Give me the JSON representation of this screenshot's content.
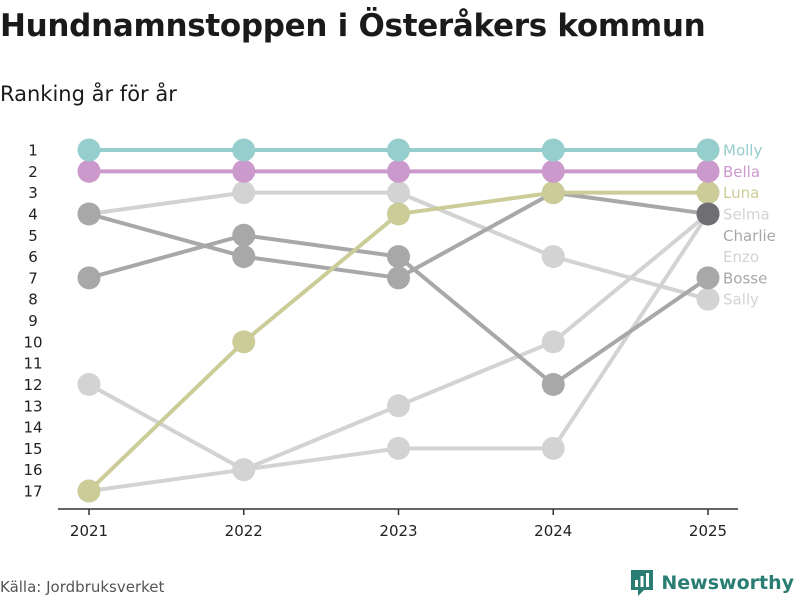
{
  "header": {
    "title": "Hundnamnstoppen i Österåkers kommun",
    "subtitle": "Ranking år för år"
  },
  "footer": {
    "source": "Källa: Jordbruksverket",
    "brand": "Newsworthy"
  },
  "colors": {
    "molly": "#96cdcd",
    "bella": "#cc99cc",
    "luna": "#cccc99",
    "light_gray": "#d3d3d3",
    "mid_gray": "#a8a8a8",
    "dark_gray": "#6e6e73",
    "axis": "#333333",
    "brand": "#2a7d73"
  },
  "chart_data": {
    "type": "line",
    "title": "Hundnamnstoppen i Österåkers kommun",
    "subtitle": "Ranking år för år",
    "xlabel": "",
    "ylabel": "",
    "x": [
      2021,
      2022,
      2023,
      2024,
      2025
    ],
    "x_tick_labels": [
      "2021",
      "2022",
      "2023",
      "2024",
      "2025"
    ],
    "y_tick_labels": [
      "1",
      "2",
      "3",
      "4",
      "5",
      "6",
      "7",
      "8",
      "9",
      "10",
      "11",
      "12",
      "13",
      "14",
      "15",
      "16",
      "17"
    ],
    "ylim": [
      1,
      17
    ],
    "y_inverted": true,
    "grid": false,
    "series": [
      {
        "name": "Sally",
        "values": [
          4,
          3,
          3,
          6,
          8
        ],
        "color_key": "light_gray"
      },
      {
        "name": "Enzo",
        "values": [
          12,
          16,
          13,
          10,
          4
        ],
        "color_key": "light_gray"
      },
      {
        "name": "Charlie",
        "values": [
          17,
          16,
          15,
          15,
          4
        ],
        "color_key": "light_gray"
      },
      {
        "name": "Selma",
        "values": [
          4,
          6,
          7,
          3,
          4
        ],
        "color_key": "mid_gray"
      },
      {
        "name": "Bosse",
        "values": [
          7,
          5,
          6,
          12,
          7
        ],
        "color_key": "mid_gray"
      },
      {
        "name": "Luna",
        "values": [
          17,
          10,
          4,
          3,
          3
        ],
        "color_key": "luna"
      },
      {
        "name": "Bella",
        "values": [
          2,
          2,
          2,
          2,
          2
        ],
        "color_key": "bella"
      },
      {
        "name": "Molly",
        "values": [
          1,
          1,
          1,
          1,
          1
        ],
        "color_key": "molly"
      }
    ],
    "end_labels": [
      {
        "name": "Molly",
        "rank": 1,
        "color_key": "molly"
      },
      {
        "name": "Bella",
        "rank": 2,
        "color_key": "bella"
      },
      {
        "name": "Luna",
        "rank": 3,
        "color_key": "luna"
      },
      {
        "name": "Selma",
        "rank": 4,
        "color_key": "light_gray"
      },
      {
        "name": "Charlie",
        "rank": 5,
        "color_key": "mid_gray"
      },
      {
        "name": "Enzo",
        "rank": 6,
        "color_key": "light_gray"
      },
      {
        "name": "Bosse",
        "rank": 7,
        "color_key": "mid_gray"
      },
      {
        "name": "Sally",
        "rank": 8,
        "color_key": "light_gray"
      }
    ],
    "end_highlight": {
      "rank": 4,
      "color_key": "dark_gray"
    }
  }
}
